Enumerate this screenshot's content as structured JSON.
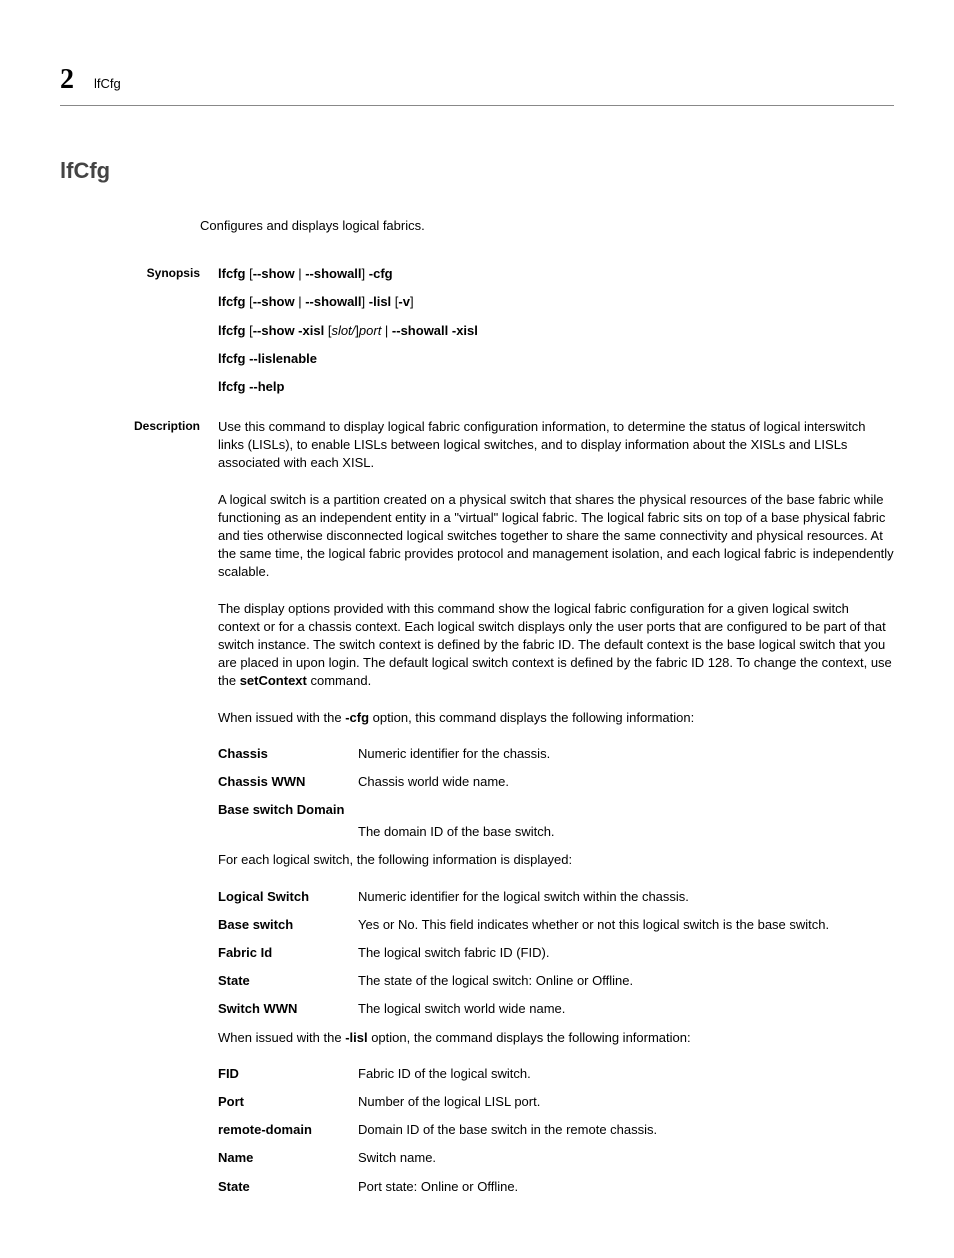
{
  "header": {
    "chapter": "2",
    "running": "lfCfg"
  },
  "title": "lfCfg",
  "intro": "Configures and displays logical fabrics.",
  "synopsis": {
    "label": "Synopsis",
    "lines": [
      {
        "pre": "lfcfg",
        "mid": "[--show | --showall] -cfg"
      },
      {
        "pre": "lfcfg",
        "mid": "[--show | --showall] -lisl [-v]"
      },
      {
        "pre": "lfcfg",
        "mid": "[--show -xisl [slot/]port | --showall -xisl"
      },
      {
        "pre": "lfcfg",
        "mid": "--lislenable"
      },
      {
        "pre": "lfcfg",
        "mid": "--help"
      }
    ]
  },
  "description": {
    "label": "Description",
    "p1": "Use this command to display logical fabric configuration information, to determine the status of logical interswitch links (LISLs), to enable LISLs between logical switches, and to display information about the XISLs and LISLs associated with each XISL.",
    "p2": "A logical switch is a partition created on a physical switch that shares the physical resources of the base fabric while functioning as an independent entity in a \"virtual\" logical fabric. The logical fabric sits on top of a base physical fabric and ties otherwise disconnected logical switches together to share the same connectivity and physical resources. At the same time, the logical fabric provides protocol and management isolation, and each logical fabric is independently scalable.",
    "p3a": "The display options provided with this command show the logical fabric configuration for a given logical switch context or for a chassis context. Each logical switch displays only the user ports that are configured to be part of that switch instance. The switch context is defined by the fabric ID. The default context is the base logical switch that you are placed in upon login. The default logical switch context is defined by the fabric ID 128. To change the context, use the ",
    "p3b": "setContext",
    "p3c": " command.",
    "p4a": "When issued with the ",
    "p4b": "-cfg",
    "p4c": " option, this command displays the following information:",
    "defs1": [
      {
        "term": "Chassis",
        "desc": "Numeric identifier for the chassis."
      },
      {
        "term": "Chassis WWN",
        "desc": "Chassis world wide name."
      }
    ],
    "defs1_stack": {
      "term": "Base switch Domain",
      "desc": "The domain ID of the base switch."
    },
    "p5": "For each logical switch, the following information is displayed:",
    "defs2": [
      {
        "term": "Logical Switch",
        "desc": "Numeric identifier for the logical switch within the chassis."
      },
      {
        "term": "Base switch",
        "desc": "Yes or No. This field indicates whether or not this logical switch is the base switch."
      },
      {
        "term": "Fabric Id",
        "desc": "The logical switch fabric ID (FID)."
      },
      {
        "term": "State",
        "desc": "The state of the logical switch: Online or Offline."
      },
      {
        "term": "Switch WWN",
        "desc": "The logical switch world wide name."
      }
    ],
    "p6a": "When issued with the ",
    "p6b": "-lisl",
    "p6c": " option, the command displays the following information:",
    "defs3": [
      {
        "term": "FID",
        "desc": "Fabric ID of the logical switch."
      },
      {
        "term": "Port",
        "desc": "Number of the logical LISL port."
      },
      {
        "term": "remote-domain",
        "desc": "Domain ID of the base switch in the remote chassis."
      },
      {
        "term": "Name",
        "desc": "Switch name."
      },
      {
        "term": "State",
        "desc": "Port state: Online or Offline."
      }
    ]
  }
}
